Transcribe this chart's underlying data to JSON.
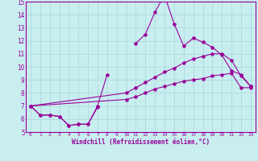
{
  "xlabel": "Windchill (Refroidissement éolien,°C)",
  "background_color": "#c8eef0",
  "grid_color": "#b0dde0",
  "line_color": "#990099",
  "spine_color": "#990099",
  "xlim": [
    -0.5,
    23.5
  ],
  "ylim": [
    5,
    15
  ],
  "yticks": [
    5,
    6,
    7,
    8,
    9,
    10,
    11,
    12,
    13,
    14,
    15
  ],
  "xticks": [
    0,
    1,
    2,
    3,
    4,
    5,
    6,
    7,
    8,
    9,
    10,
    11,
    12,
    13,
    14,
    15,
    16,
    17,
    18,
    19,
    20,
    21,
    22,
    23
  ],
  "series": [
    {
      "x": [
        0,
        1,
        2,
        3,
        4,
        5,
        6,
        7,
        8
      ],
      "y": [
        7.0,
        6.3,
        6.3,
        6.2,
        5.5,
        5.6,
        5.6,
        7.0,
        9.4
      ]
    },
    {
      "x": [
        0,
        1,
        2,
        3,
        4,
        5,
        6,
        7
      ],
      "y": [
        7.0,
        6.3,
        6.3,
        6.2,
        5.5,
        5.6,
        5.6,
        6.9
      ]
    },
    {
      "x": [
        11,
        12,
        13,
        14,
        15,
        16,
        17,
        18,
        19,
        20,
        21,
        22,
        23
      ],
      "y": [
        11.8,
        12.5,
        14.2,
        15.5,
        13.3,
        11.6,
        12.2,
        11.9,
        11.5,
        10.9,
        9.7,
        9.4,
        8.5
      ]
    },
    {
      "x": [
        0,
        10,
        11,
        12,
        13,
        14,
        15,
        16,
        17,
        18,
        19,
        20,
        21,
        22,
        23
      ],
      "y": [
        7.0,
        8.0,
        8.4,
        8.8,
        9.2,
        9.6,
        9.9,
        10.3,
        10.6,
        10.8,
        11.0,
        11.0,
        10.5,
        9.3,
        8.5
      ]
    },
    {
      "x": [
        0,
        10,
        11,
        12,
        13,
        14,
        15,
        16,
        17,
        18,
        19,
        20,
        21,
        22,
        23
      ],
      "y": [
        7.0,
        7.5,
        7.7,
        8.0,
        8.3,
        8.5,
        8.7,
        8.9,
        9.0,
        9.1,
        9.3,
        9.4,
        9.5,
        8.4,
        8.4
      ]
    }
  ]
}
